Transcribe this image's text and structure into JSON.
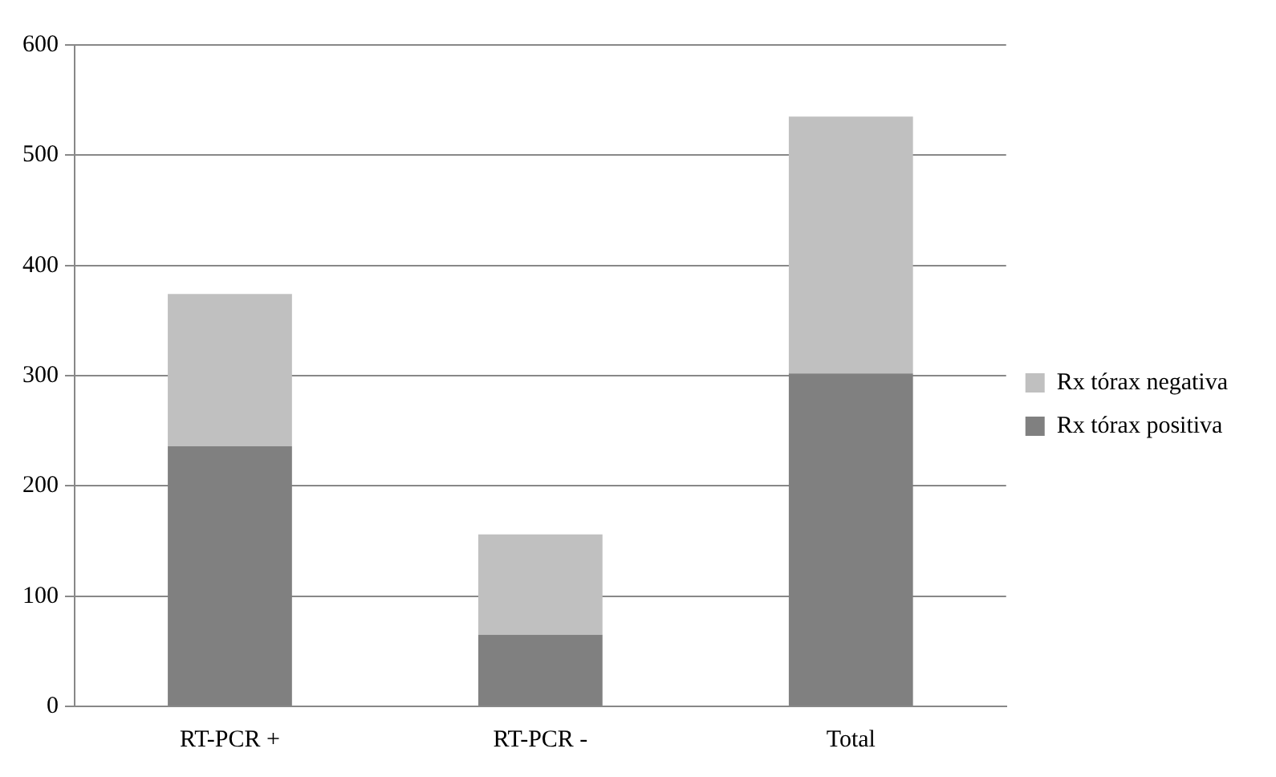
{
  "chart_data": {
    "type": "bar",
    "stacked": true,
    "categories": [
      "RT-PCR +",
      "RT-PCR -",
      "Total"
    ],
    "series": [
      {
        "name": "Rx tórax positiva",
        "color": "#808080",
        "values": [
          236,
          65,
          302
        ]
      },
      {
        "name": "Rx tórax negativa",
        "color": "#c0c0c0",
        "values": [
          138,
          91,
          233
        ]
      }
    ],
    "ylim": [
      0,
      600
    ],
    "yticks": [
      0,
      100,
      200,
      300,
      400,
      500,
      600
    ],
    "grid": "y",
    "legend": "right"
  }
}
